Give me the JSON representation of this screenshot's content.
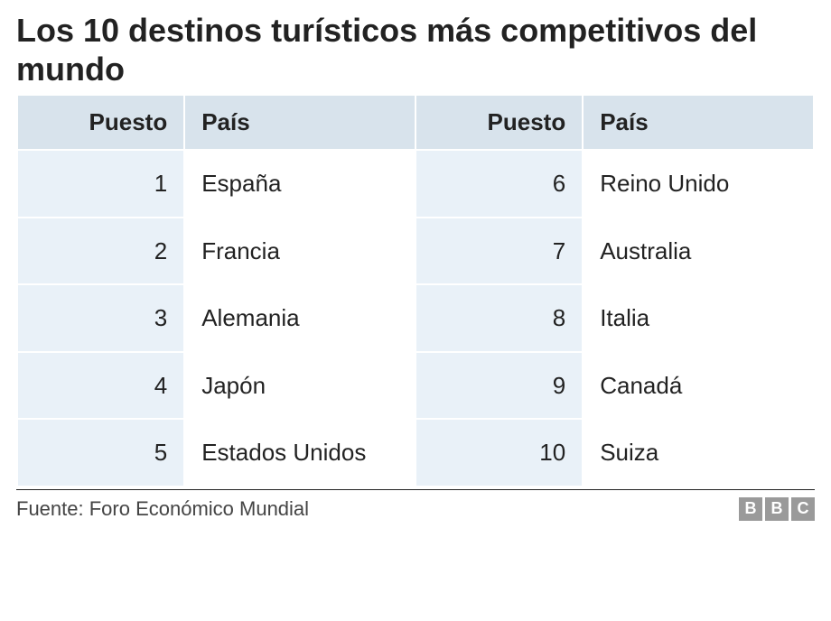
{
  "title": "Los 10 destinos turísticos más competitivos del mundo",
  "headers": {
    "rank": "Puesto",
    "country": "País"
  },
  "rows": [
    {
      "rank1": "1",
      "country1": "España",
      "rank2": "6",
      "country2": "Reino Unido"
    },
    {
      "rank1": "2",
      "country1": "Francia",
      "rank2": "7",
      "country2": "Australia"
    },
    {
      "rank1": "3",
      "country1": "Alemania",
      "rank2": "8",
      "country2": "Italia"
    },
    {
      "rank1": "4",
      "country1": "Japón",
      "rank2": "9",
      "country2": "Canadá"
    },
    {
      "rank1": "5",
      "country1": "Estados Unidos",
      "rank2": "10",
      "country2": "Suiza"
    }
  ],
  "source": "Fuente: Foro Económico Mundial",
  "logo_letters": [
    "B",
    "B",
    "C"
  ],
  "styling": {
    "title_fontsize": 36,
    "title_color": "#222222",
    "header_bg": "#d8e3ec",
    "header_fontsize": 26,
    "rank_cell_bg": "#e9f1f8",
    "country_cell_bg": "#ffffff",
    "cell_fontsize": 26,
    "cell_text_color": "#222222",
    "border_color": "#ffffff",
    "footer_border_color": "#222222",
    "source_fontsize": 22,
    "source_color": "#444444",
    "logo_box_bg": "#9a9a9a",
    "logo_box_fg": "#ffffff",
    "column_widths_pct": [
      21,
      29,
      21,
      29
    ]
  }
}
